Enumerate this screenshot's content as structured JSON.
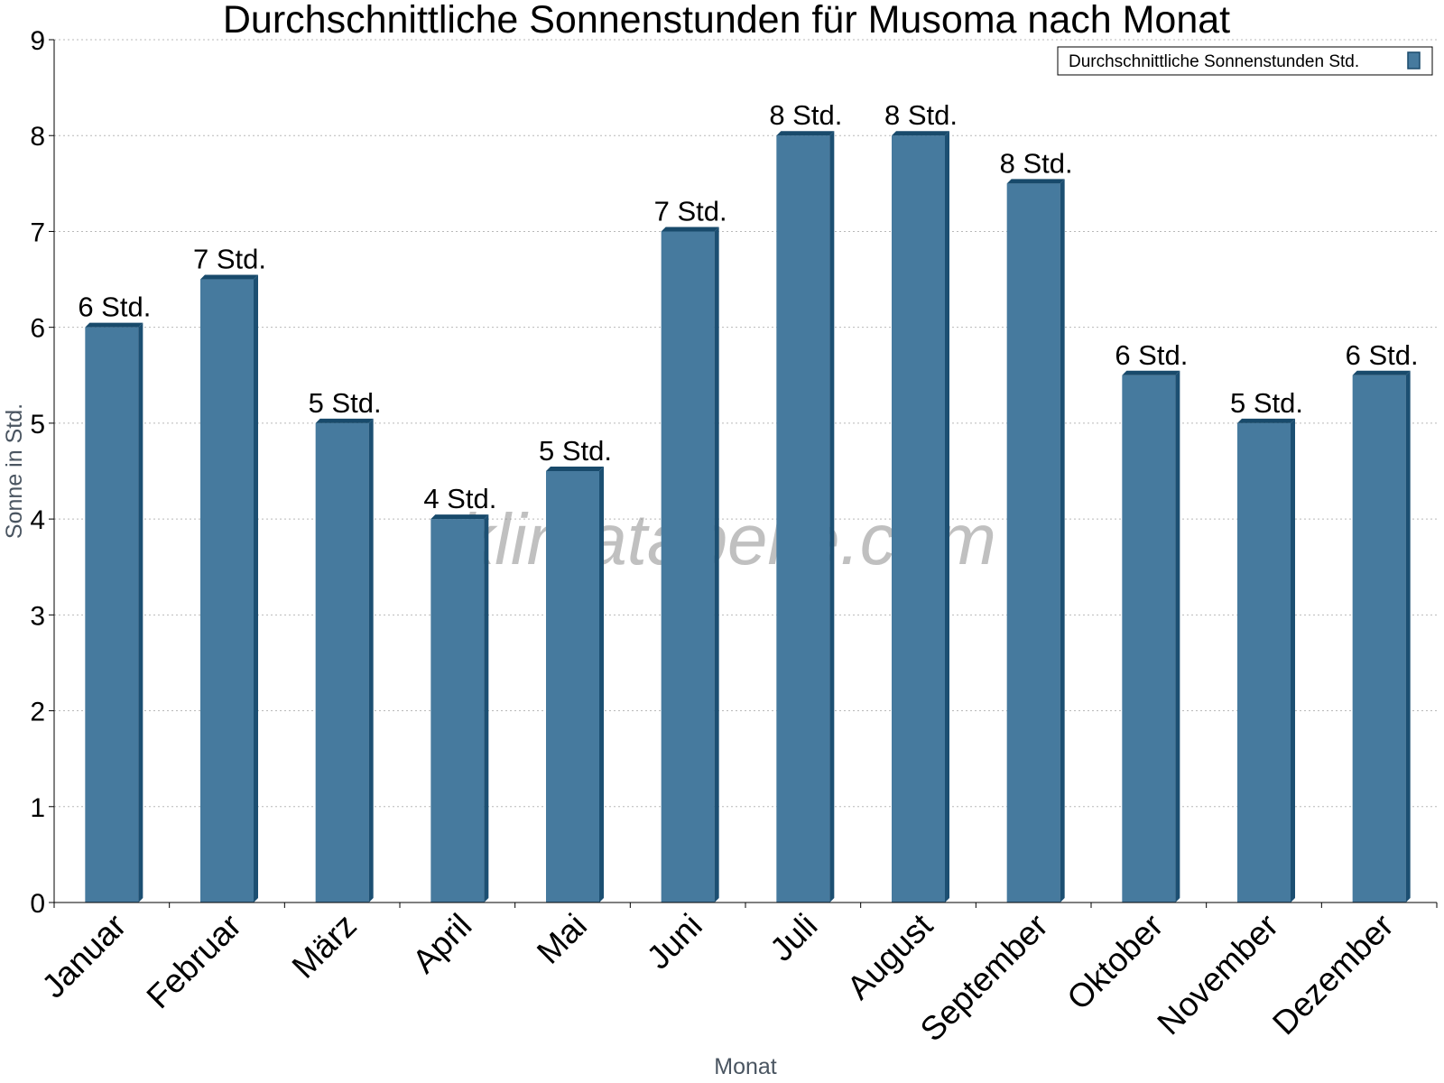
{
  "chart_data": {
    "type": "bar",
    "title": "Durchschnittliche Sonnenstunden für Musoma nach Monat",
    "xlabel": "Monat",
    "ylabel": "Sonne in Std.",
    "ylim": [
      0,
      9
    ],
    "yticks": [
      0,
      1,
      2,
      3,
      4,
      5,
      6,
      7,
      8,
      9
    ],
    "grid": true,
    "legend_position": "top-right",
    "categories": [
      "Januar",
      "Februar",
      "März",
      "April",
      "Mai",
      "Juni",
      "Juli",
      "August",
      "September",
      "Oktober",
      "November",
      "Dezember"
    ],
    "series": [
      {
        "name": "Durchschnittliche Sonnenstunden Std.",
        "color": "#467a9e",
        "values": [
          6,
          6.5,
          5,
          4,
          4.5,
          7,
          8,
          8,
          7.5,
          5.5,
          5,
          5.5
        ],
        "labels": [
          "6 Std.",
          "7 Std.",
          "5 Std.",
          "4 Std.",
          "5 Std.",
          "7 Std.",
          "8 Std.",
          "8 Std.",
          "8 Std.",
          "6 Std.",
          "5 Std.",
          "6 Std."
        ]
      }
    ]
  },
  "watermark": "klimatabelle.com"
}
